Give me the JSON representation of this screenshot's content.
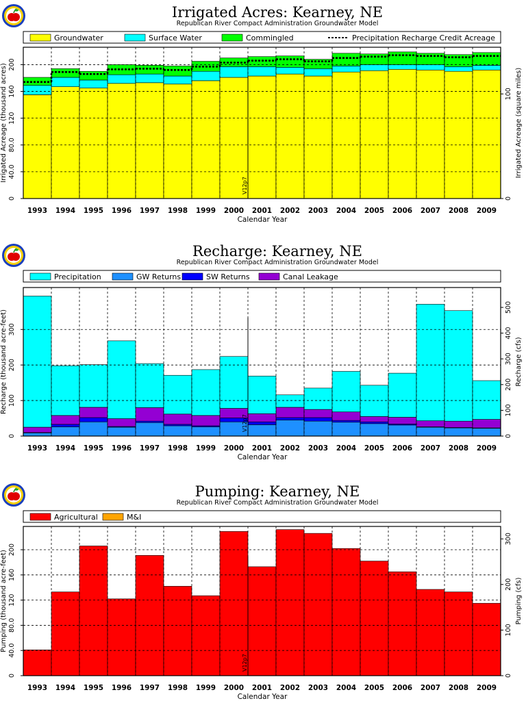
{
  "panels": [
    {
      "title": "Irrigated Acres: Kearney, NE",
      "subtitle": "Republican River Compact Administration Groundwater Model",
      "xlabel": "Calendar Year",
      "ylabel": "Irrigated Acreage (thousand acres)",
      "y2label": "Irrigated Acreage (square miles)",
      "annotation": "V12p7",
      "legend": [
        "Groundwater",
        "Surface Water",
        "Commingled",
        "Precipitation Recharge Credit Acreage"
      ]
    },
    {
      "title": "Recharge: Kearney, NE",
      "subtitle": "Republican River Compact Administration Groundwater Model",
      "xlabel": "Calendar Year",
      "ylabel": "Recharge (thousand acre-feet)",
      "y2label": "Recharge (cfs)",
      "annotation": "V12p7",
      "legend": [
        "Precipitation",
        "GW Returns",
        "SW Returns",
        "Canal Leakage"
      ]
    },
    {
      "title": "Pumping: Kearney, NE",
      "subtitle": "Republican River Compact Administration Groundwater Model",
      "xlabel": "Calendar Year",
      "ylabel": "Pumping (thousand acre-feet)",
      "y2label": "Pumping (cfs)",
      "annotation": "V12p7",
      "legend": [
        "Agricultural",
        "M&I"
      ]
    }
  ],
  "colors": {
    "groundwater": "#ffff00",
    "surface_water": "#00ffff",
    "commingled": "#00ff00",
    "precipitation": "#00ffff",
    "gw_returns": "#1e90ff",
    "sw_returns": "#0000ff",
    "canal_leakage": "#9400d3",
    "agricultural": "#ff0000",
    "m_and_i": "#ffa500"
  },
  "chart_data": [
    {
      "type": "bar",
      "stacked": true,
      "categories": [
        "1993",
        "1994",
        "1995",
        "1996",
        "1997",
        "1998",
        "1999",
        "2000",
        "2001",
        "2002",
        "2003",
        "2004",
        "2005",
        "2006",
        "2007",
        "2008",
        "2009"
      ],
      "series": [
        {
          "name": "Groundwater",
          "values": [
            155,
            167,
            165,
            172,
            173,
            171,
            176,
            181,
            183,
            186,
            183,
            189,
            191,
            193,
            192,
            190,
            192
          ]
        },
        {
          "name": "Surface Water",
          "values": [
            14,
            14,
            12,
            13,
            13,
            12,
            14,
            16,
            14,
            10,
            11,
            9,
            9,
            7,
            8,
            7,
            7
          ]
        },
        {
          "name": "Commingled",
          "values": [
            12,
            13,
            13,
            15,
            13,
            15,
            15,
            13,
            15,
            17,
            14,
            19,
            16,
            19,
            17,
            18,
            19
          ]
        },
        {
          "name": "Precipitation Recharge Credit Acreage",
          "line": true,
          "values": [
            174,
            189,
            186,
            193,
            194,
            192,
            197,
            203,
            206,
            208,
            205,
            210,
            212,
            214,
            213,
            211,
            213
          ]
        }
      ],
      "ylim": [
        0,
        226
      ],
      "yticks": [
        0,
        40.0,
        80.0,
        120,
        160,
        200
      ],
      "y2ticks": [
        0,
        100,
        200,
        300
      ],
      "y2ratio": 0.64,
      "grid": true,
      "legend": "top"
    },
    {
      "type": "bar",
      "stacked": true,
      "categories": [
        "1993",
        "1994",
        "1995",
        "1996",
        "1997",
        "1998",
        "1999",
        "2000",
        "2001",
        "2002",
        "2003",
        "2004",
        "2005",
        "2006",
        "2007",
        "2008",
        "2009"
      ],
      "series": [
        {
          "name": "GW Returns",
          "values": [
            9,
            26,
            40,
            25,
            38,
            29,
            26,
            40,
            32,
            45,
            42,
            39,
            35,
            31,
            25,
            23,
            22
          ]
        },
        {
          "name": "SW Returns",
          "values": [
            1,
            7,
            12,
            2,
            4,
            4,
            3,
            11,
            8,
            7,
            10,
            5,
            5,
            3,
            1,
            1,
            1
          ]
        },
        {
          "name": "Canal Leakage",
          "values": [
            15,
            25,
            29,
            22,
            38,
            29,
            29,
            27,
            23,
            29,
            23,
            24,
            15,
            19,
            17,
            18,
            24
          ]
        },
        {
          "name": "Precipitation",
          "values": [
            369,
            140,
            120,
            219,
            124,
            109,
            129,
            146,
            106,
            35,
            60,
            114,
            88,
            124,
            328,
            311,
            109
          ]
        }
      ],
      "ylim": [
        0,
        418
      ],
      "yticks": [
        0,
        100,
        200,
        300
      ],
      "y2ticks": [
        0,
        100,
        200,
        300,
        400,
        500
      ],
      "y2ratio": 1.381,
      "grid": true,
      "legend": "top"
    },
    {
      "type": "bar",
      "stacked": true,
      "categories": [
        "1993",
        "1994",
        "1995",
        "1996",
        "1997",
        "1998",
        "1999",
        "2000",
        "2001",
        "2002",
        "2003",
        "2004",
        "2005",
        "2006",
        "2007",
        "2008",
        "2009"
      ],
      "series": [
        {
          "name": "Agricultural",
          "values": [
            41,
            133,
            206,
            122,
            191,
            142,
            127,
            229,
            173,
            232,
            226,
            202,
            182,
            165,
            137,
            133,
            115
          ]
        },
        {
          "name": "M&I",
          "values": [
            0,
            0,
            0,
            0,
            0,
            0,
            0,
            0,
            0,
            0,
            0,
            0,
            0,
            0,
            0,
            0,
            0
          ]
        }
      ],
      "ylim": [
        0,
        237
      ],
      "yticks": [
        0,
        40.0,
        80.0,
        120,
        160,
        200
      ],
      "y2ticks": [
        0,
        100,
        200,
        300
      ],
      "y2ratio": 1.381,
      "grid": true,
      "legend": "top"
    }
  ]
}
